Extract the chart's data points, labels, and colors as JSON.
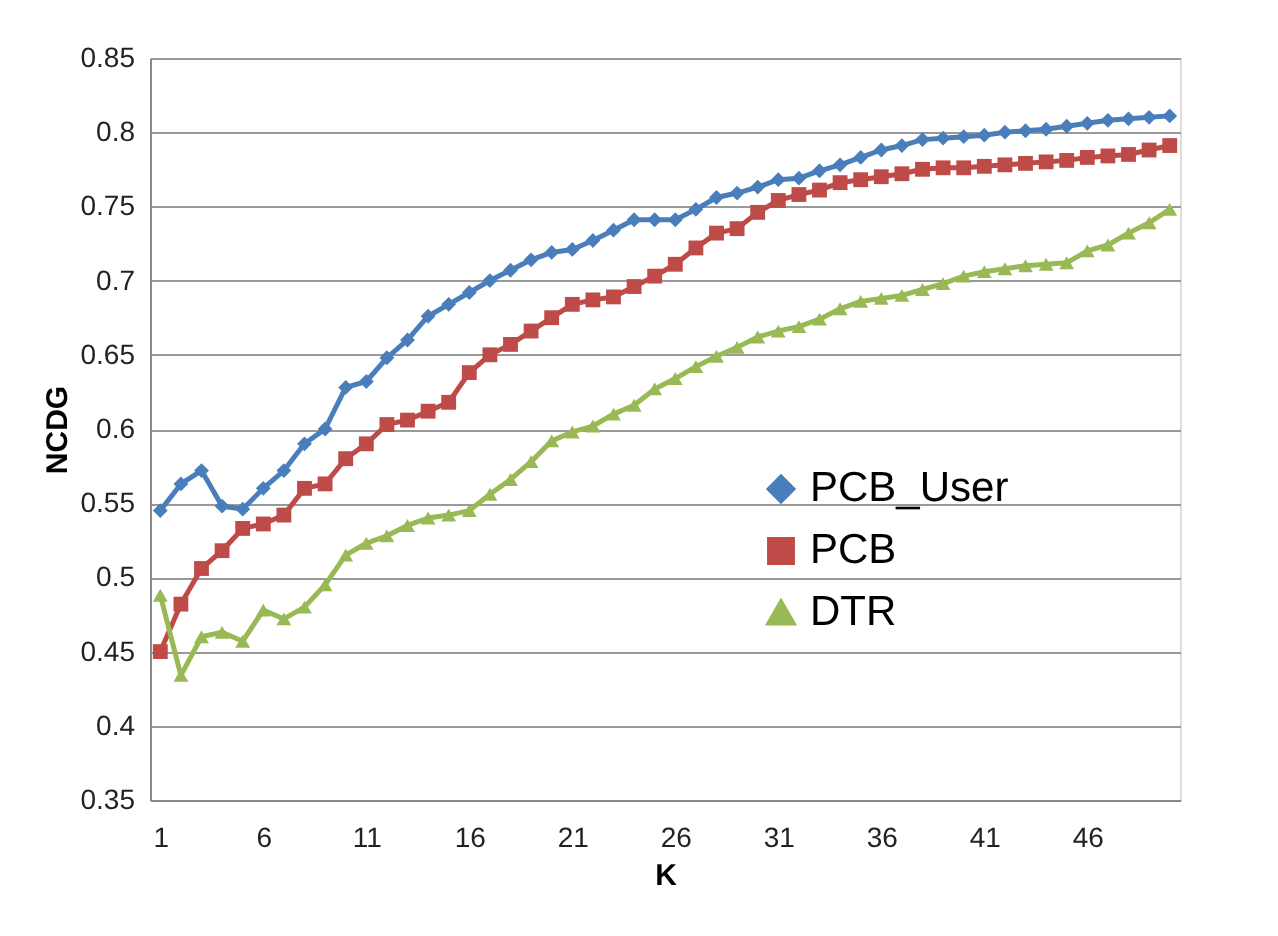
{
  "chart_data": {
    "type": "line",
    "xlabel": "K",
    "ylabel": "NCDG",
    "x": [
      1,
      2,
      3,
      4,
      5,
      6,
      7,
      8,
      9,
      10,
      11,
      12,
      13,
      14,
      15,
      16,
      17,
      18,
      19,
      20,
      21,
      22,
      23,
      24,
      25,
      26,
      27,
      28,
      29,
      30,
      31,
      32,
      33,
      34,
      35,
      36,
      37,
      38,
      39,
      40,
      41,
      42,
      43,
      44,
      45,
      46,
      47,
      48,
      49,
      50
    ],
    "xlim": [
      0.5,
      50.5
    ],
    "xticks": [
      1,
      6,
      11,
      16,
      21,
      26,
      31,
      36,
      41,
      46
    ],
    "ylim": [
      0.35,
      0.85
    ],
    "yticks": [
      0.35,
      0.4,
      0.45,
      0.5,
      0.55,
      0.6,
      0.65,
      0.7,
      0.75,
      0.8,
      0.85
    ],
    "grid": "y",
    "legend": "right",
    "line_style": "solid",
    "series": [
      {
        "name": "PCB_User",
        "color": "#4a7ebb",
        "marker": "diamond",
        "values": [
          0.545,
          0.563,
          0.572,
          0.548,
          0.546,
          0.56,
          0.572,
          0.59,
          0.6,
          0.628,
          0.632,
          0.648,
          0.66,
          0.676,
          0.684,
          0.692,
          0.7,
          0.707,
          0.714,
          0.719,
          0.721,
          0.727,
          0.734,
          0.741,
          0.741,
          0.741,
          0.748,
          0.756,
          0.759,
          0.763,
          0.768,
          0.769,
          0.774,
          0.778,
          0.783,
          0.788,
          0.791,
          0.795,
          0.796,
          0.797,
          0.798,
          0.8,
          0.801,
          0.802,
          0.804,
          0.806,
          0.808,
          0.809,
          0.81,
          0.811
        ]
      },
      {
        "name": "PCB",
        "color": "#be4b48",
        "marker": "square",
        "values": [
          0.45,
          0.482,
          0.506,
          0.518,
          0.533,
          0.536,
          0.542,
          0.56,
          0.563,
          0.58,
          0.59,
          0.603,
          0.606,
          0.612,
          0.618,
          0.638,
          0.65,
          0.657,
          0.666,
          0.675,
          0.684,
          0.687,
          0.689,
          0.696,
          0.703,
          0.711,
          0.722,
          0.732,
          0.735,
          0.746,
          0.754,
          0.758,
          0.761,
          0.766,
          0.768,
          0.77,
          0.772,
          0.775,
          0.776,
          0.776,
          0.777,
          0.778,
          0.779,
          0.78,
          0.781,
          0.783,
          0.784,
          0.785,
          0.788,
          0.791
        ]
      },
      {
        "name": "DTR",
        "color": "#98b954",
        "marker": "triangle",
        "values": [
          0.488,
          0.434,
          0.46,
          0.463,
          0.457,
          0.478,
          0.472,
          0.48,
          0.495,
          0.515,
          0.523,
          0.528,
          0.535,
          0.54,
          0.542,
          0.545,
          0.556,
          0.566,
          0.578,
          0.592,
          0.598,
          0.602,
          0.61,
          0.616,
          0.627,
          0.634,
          0.642,
          0.649,
          0.655,
          0.662,
          0.666,
          0.669,
          0.674,
          0.681,
          0.686,
          0.688,
          0.69,
          0.694,
          0.698,
          0.703,
          0.706,
          0.708,
          0.71,
          0.711,
          0.712,
          0.72,
          0.724,
          0.732,
          0.739,
          0.748
        ]
      }
    ]
  }
}
